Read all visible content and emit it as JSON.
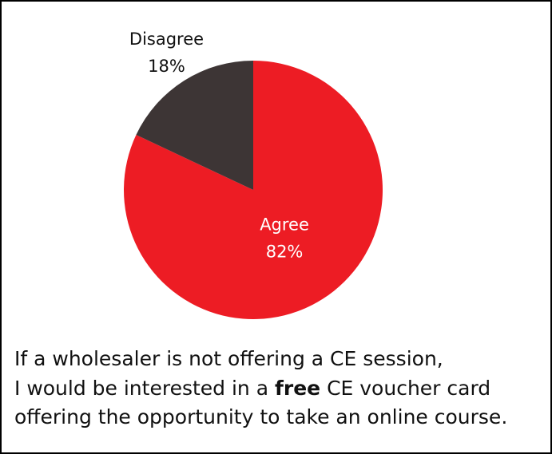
{
  "chart_data": {
    "type": "pie",
    "categories": [
      "Agree",
      "Disagree"
    ],
    "values": [
      82,
      18
    ],
    "value_labels": [
      "82%",
      "18%"
    ],
    "colors": [
      "#ed1c24",
      "#3d3535"
    ],
    "label_colors": [
      "#ffffff",
      "#111111"
    ],
    "start": "top",
    "direction": "clockwise",
    "caption": [
      "If a wholesaler is not offering a CE session,",
      "I would be interested in a",
      "free",
      "CE voucher card",
      "offering the opportunity to take an online course."
    ]
  }
}
